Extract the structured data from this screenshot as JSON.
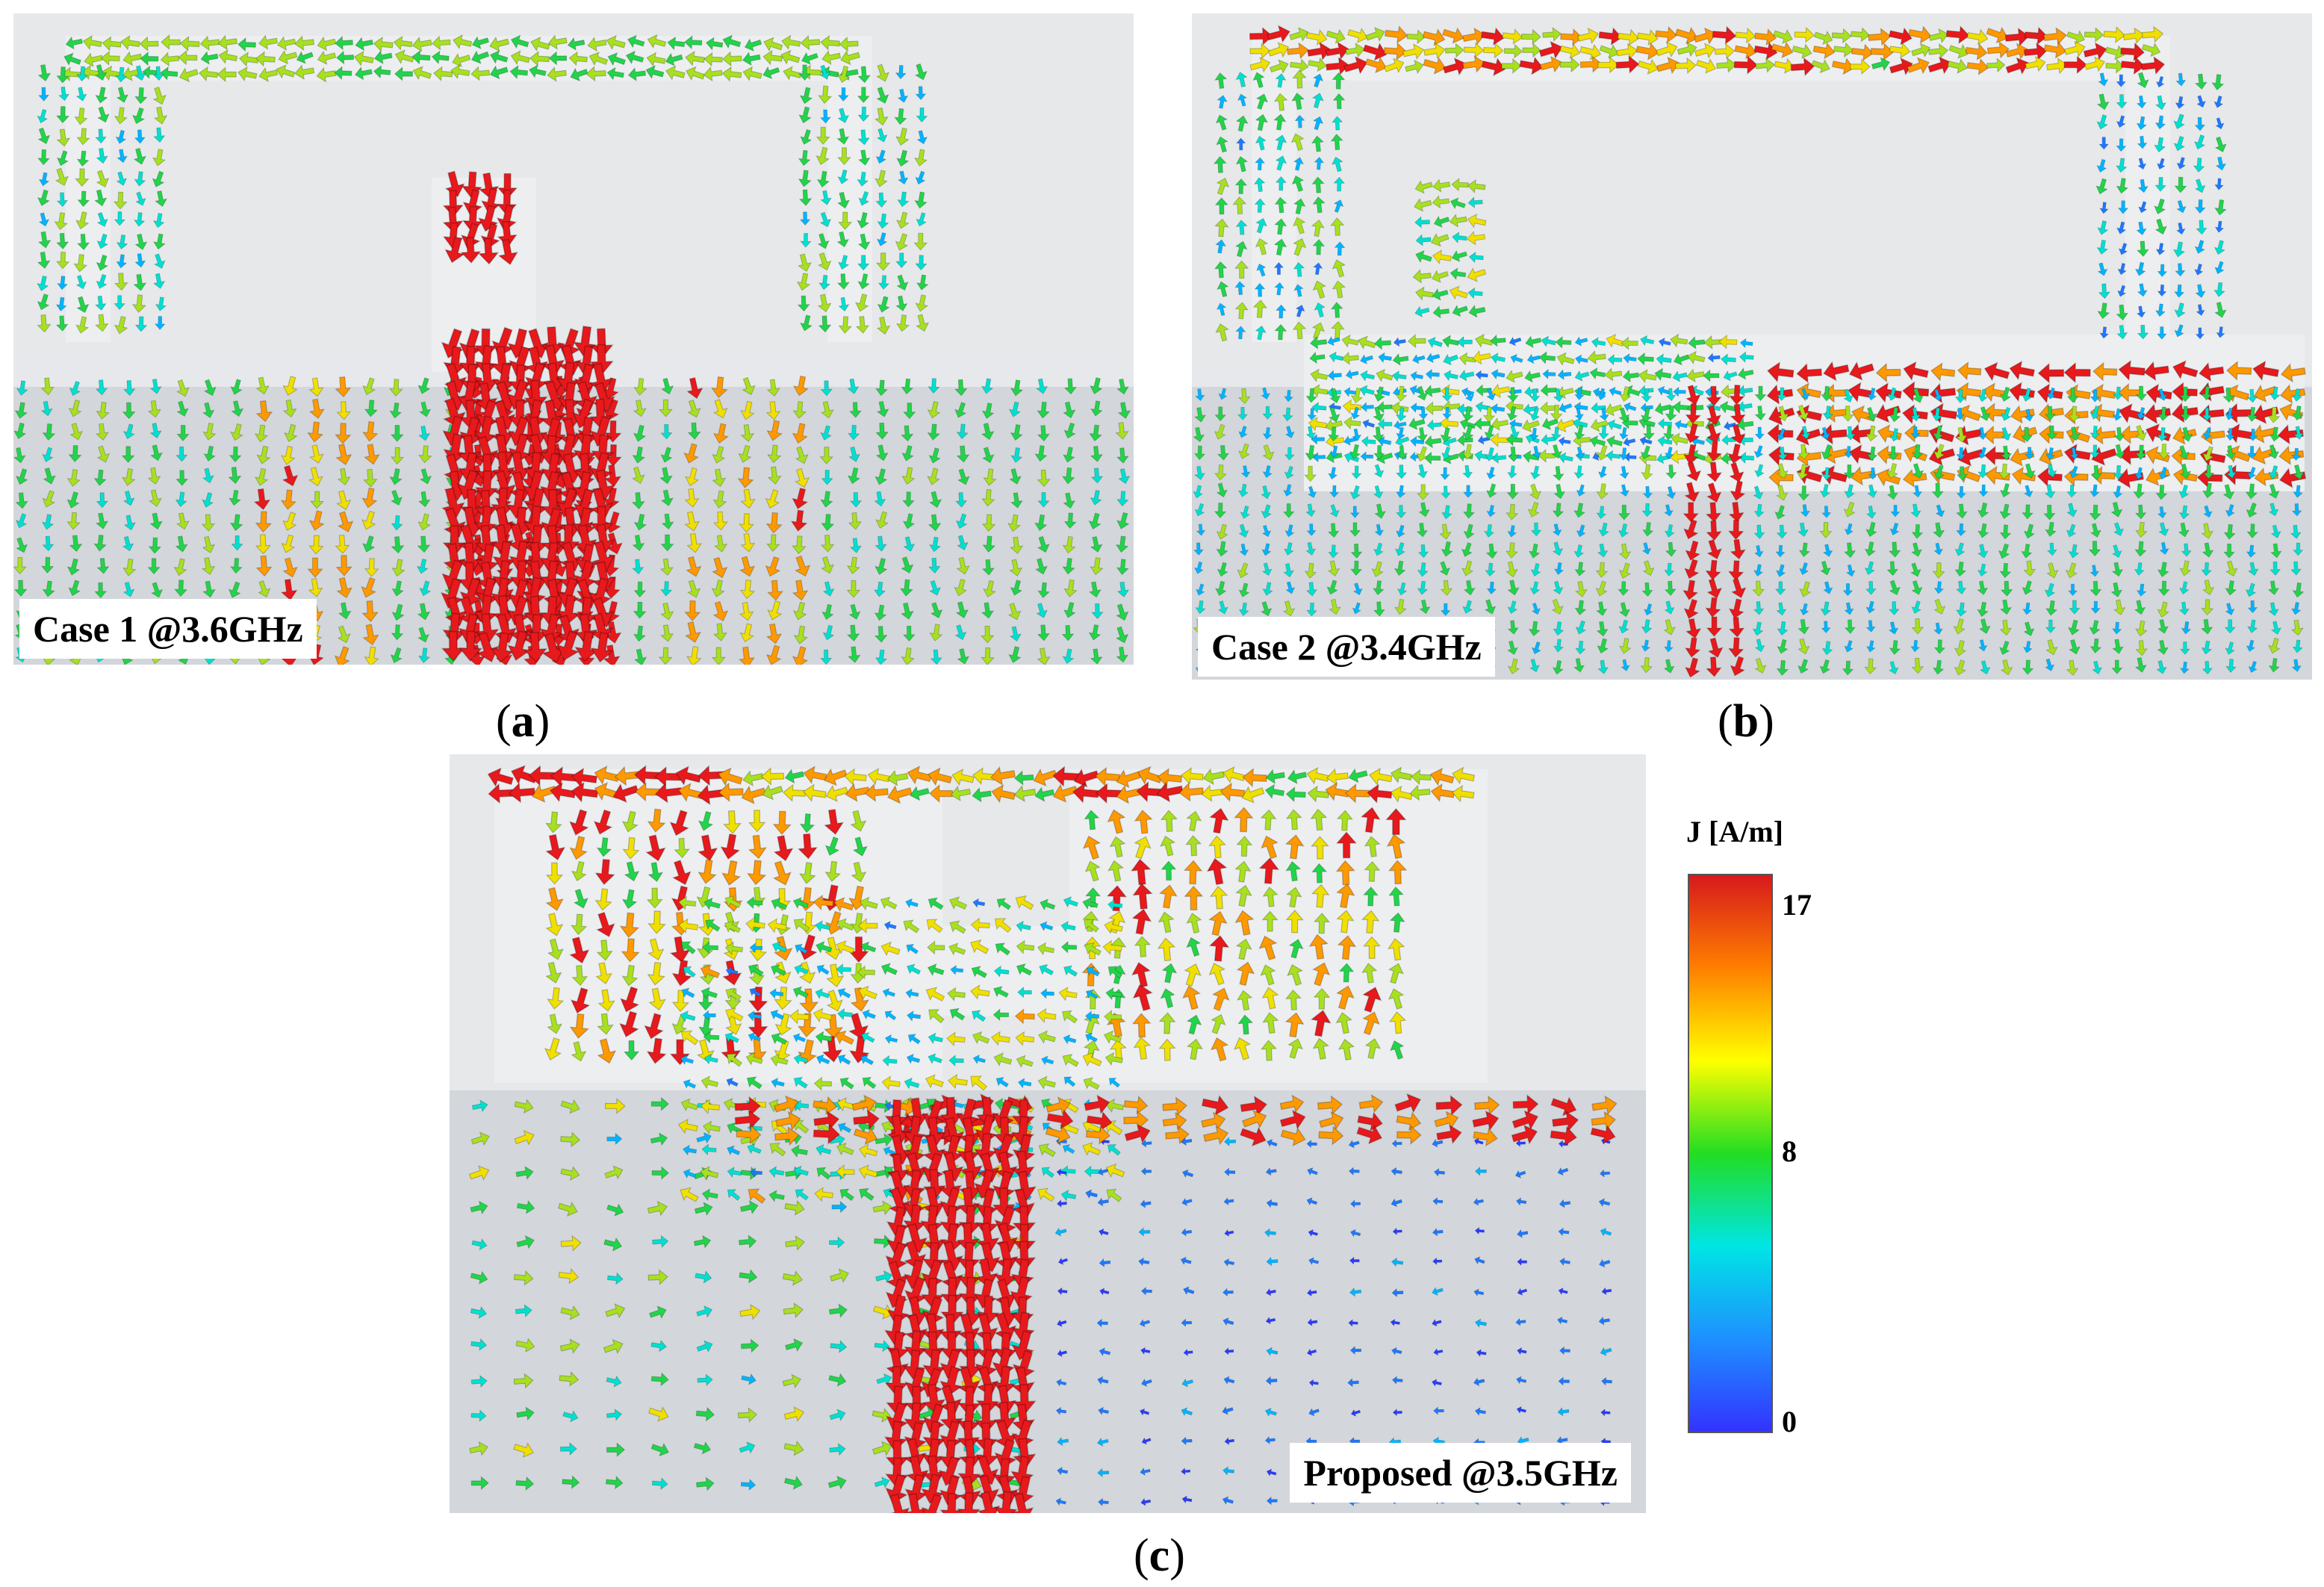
{
  "panels": {
    "a": {
      "label": "Case 1 @3.6GHz",
      "caption": "a"
    },
    "b": {
      "label": "Case 2 @3.4GHz",
      "caption": "b"
    },
    "c": {
      "label": "Proposed @3.5GHz",
      "caption": "c"
    }
  },
  "legend": {
    "title": "J [A/m]",
    "ticks": {
      "max": "17",
      "mid": "8",
      "min": "0"
    },
    "colors": [
      "#d7191c",
      "#ff7f00",
      "#ffff00",
      "#22dd22",
      "#00e5e5",
      "#1e90ff",
      "#3333ff"
    ]
  },
  "colors": {
    "background": "#dfe1e4",
    "metal": "#eceef0",
    "hot": "#e8191c"
  }
}
